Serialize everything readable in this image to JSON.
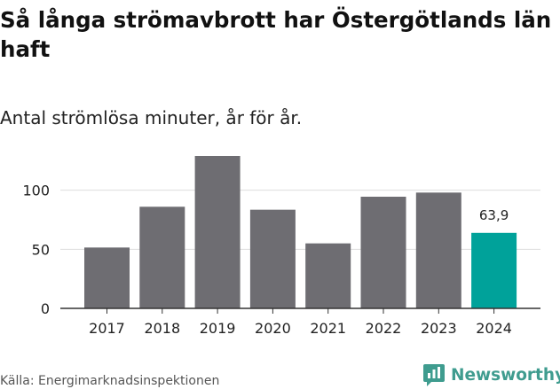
{
  "chart_data": {
    "type": "bar",
    "title": "Så långa strömavbrott har Östergötlands län haft",
    "subtitle": "Antal strömlösa minuter, år för år.",
    "categories": [
      "2017",
      "2018",
      "2019",
      "2020",
      "2021",
      "2022",
      "2023",
      "2024"
    ],
    "values": [
      51.5,
      86,
      129,
      83.5,
      55,
      94.5,
      98,
      63.9
    ],
    "highlight_index": 7,
    "data_labels": [
      {
        "index": 7,
        "text": "63,9"
      }
    ],
    "xlabel": "",
    "ylabel": "",
    "ylim": [
      0,
      135
    ],
    "yticks": [
      0,
      50,
      100
    ],
    "ytick_labels": [
      "0",
      "50",
      "100"
    ],
    "grid": true,
    "colors": {
      "bar": "#6e6d72",
      "highlight": "#00a29a",
      "grid": "#dddddd",
      "axis": "#333333"
    }
  },
  "source": "Källa: Energimarknadsinspektionen",
  "brand": {
    "name": "Newsworthy",
    "icon": "newsworthy-logo-icon",
    "color": "#3f9c8f"
  }
}
